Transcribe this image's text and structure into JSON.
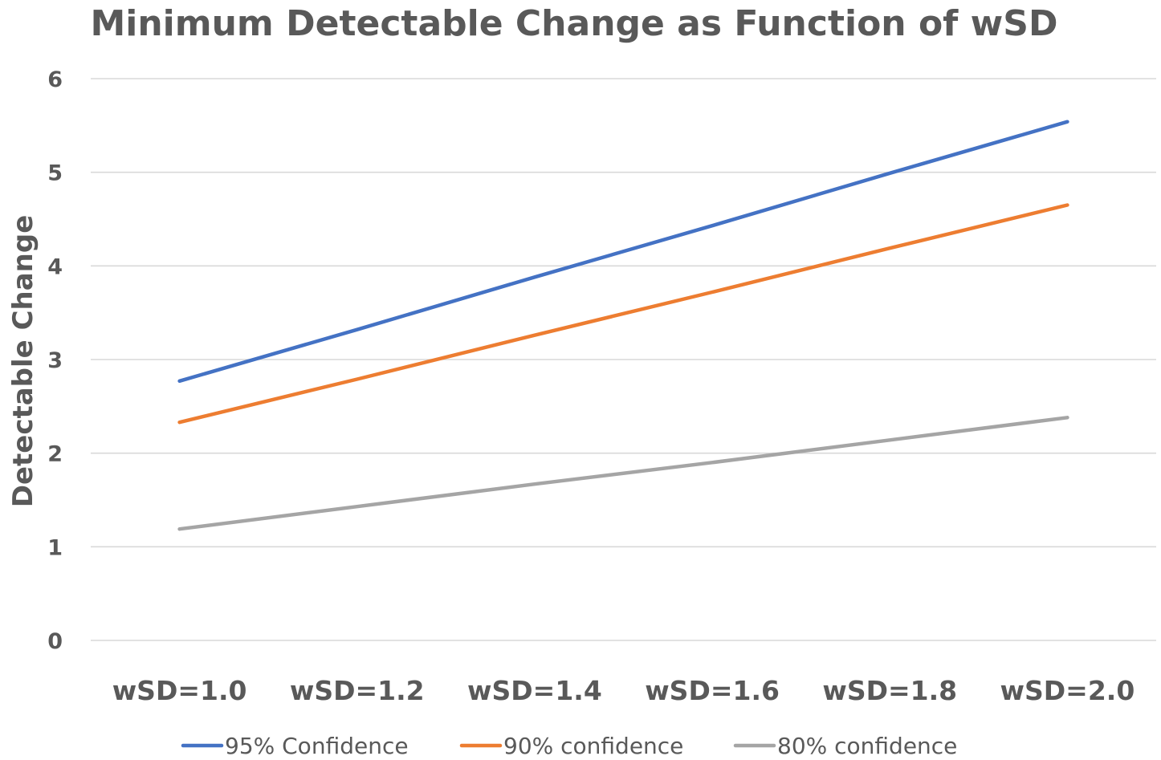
{
  "chart_data": {
    "type": "line",
    "title": "Minimum Detectable Change as Function of wSD",
    "xlabel": "",
    "ylabel": "Detectable Change",
    "categories": [
      "wSD=1.0",
      "wSD=1.2",
      "wSD=1.4",
      "wSD=1.6",
      "wSD=1.8",
      "wSD=2.0"
    ],
    "ylim": [
      0,
      6
    ],
    "yticks": [
      "0",
      "1",
      "2",
      "3",
      "4",
      "5",
      "6"
    ],
    "grid": "horizontal",
    "legend_position": "bottom",
    "series": [
      {
        "name": "95% Confidence",
        "color": "#4472C4",
        "values": [
          2.77,
          3.32,
          3.88,
          4.43,
          4.99,
          5.54
        ]
      },
      {
        "name": "90% confidence",
        "color": "#ED7D31",
        "values": [
          2.33,
          2.79,
          3.26,
          3.72,
          4.19,
          4.65
        ]
      },
      {
        "name": "80% confidence",
        "color": "#A5A5A5",
        "values": [
          1.19,
          1.43,
          1.67,
          1.9,
          2.14,
          2.38
        ]
      }
    ]
  }
}
